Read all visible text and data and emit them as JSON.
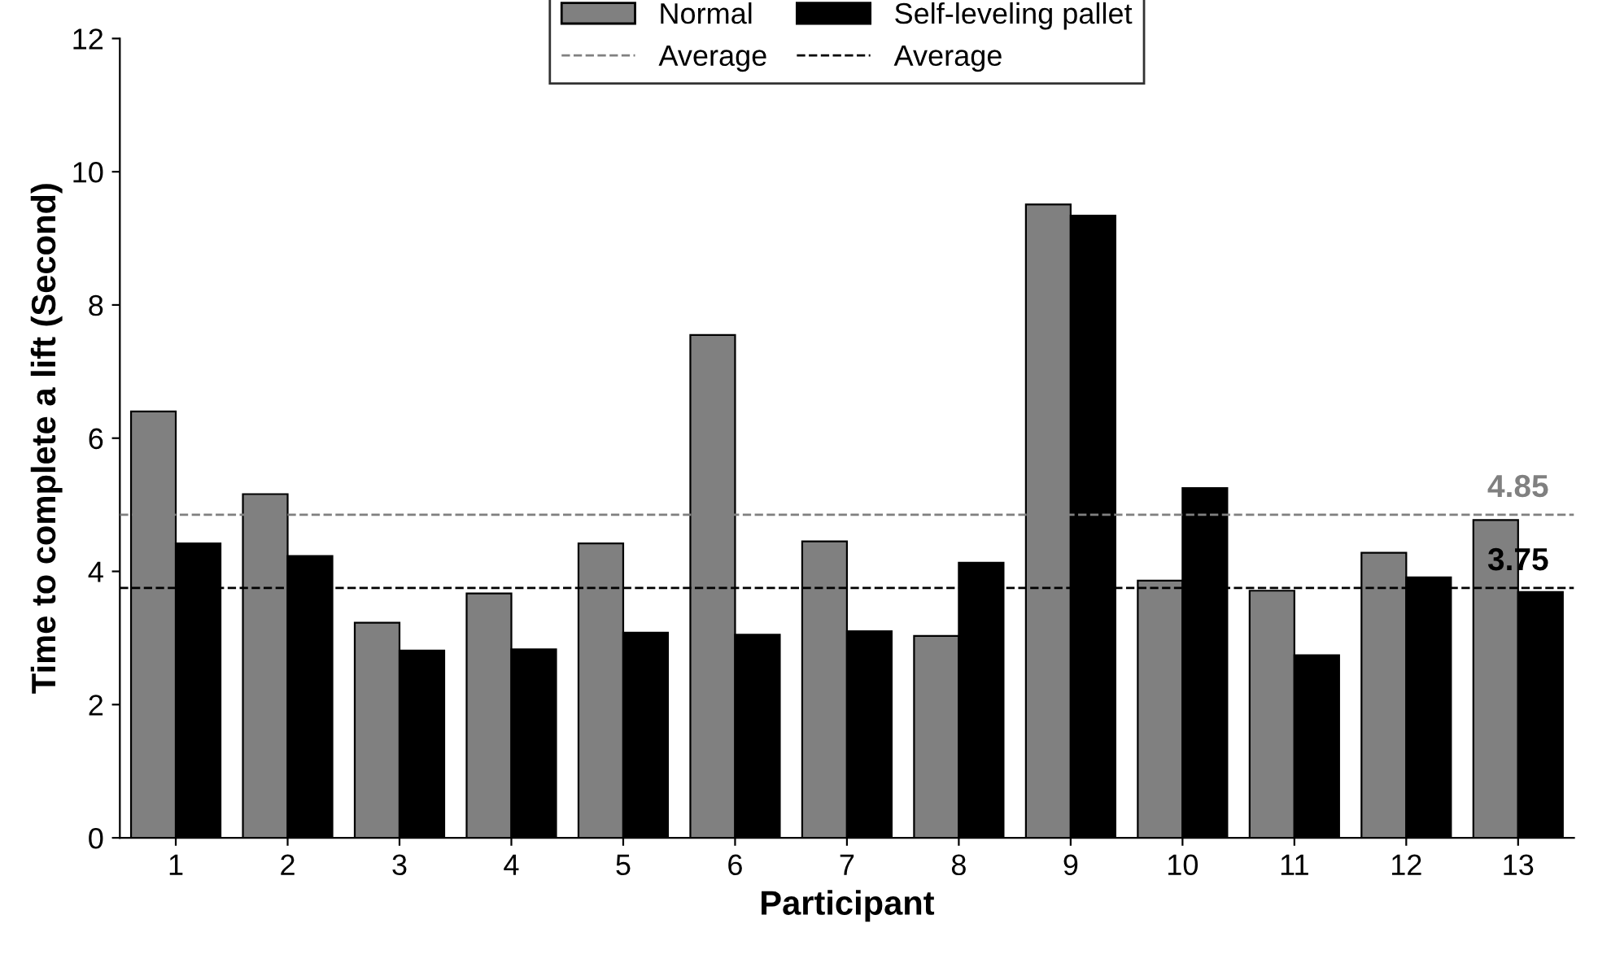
{
  "chart_data": {
    "type": "bar",
    "xlabel": "Participant",
    "ylabel": "Time to complete a lift (Second)",
    "categories": [
      "1",
      "2",
      "3",
      "4",
      "5",
      "6",
      "7",
      "8",
      "9",
      "10",
      "11",
      "12",
      "13"
    ],
    "series": [
      {
        "name": "Normal",
        "color": "#808080",
        "values": [
          6.4,
          5.16,
          3.23,
          3.67,
          4.42,
          7.55,
          4.45,
          3.03,
          9.51,
          3.86,
          3.71,
          4.28,
          4.77
        ]
      },
      {
        "name": "Self-leveling pallet",
        "color": "#000000",
        "values": [
          4.42,
          4.23,
          2.81,
          2.83,
          3.08,
          3.05,
          3.1,
          4.13,
          9.34,
          5.25,
          2.74,
          3.91,
          3.69
        ]
      }
    ],
    "ref_lines": [
      {
        "axis": "y",
        "value": 4.85,
        "label": "Average",
        "color": "#808080",
        "line_style": "dashed"
      },
      {
        "axis": "y",
        "value": 3.75,
        "label": "Average",
        "color": "#000000",
        "line_style": "dashed"
      }
    ],
    "annotations": [
      {
        "text": "4.85",
        "x": "13",
        "y": 4.85
      },
      {
        "text": "3.75",
        "x": "13",
        "y": 3.75
      }
    ],
    "ylim": [
      0,
      12
    ],
    "yticks": [
      0,
      2,
      4,
      6,
      8,
      10,
      12
    ],
    "grid": false,
    "legend": "top"
  }
}
